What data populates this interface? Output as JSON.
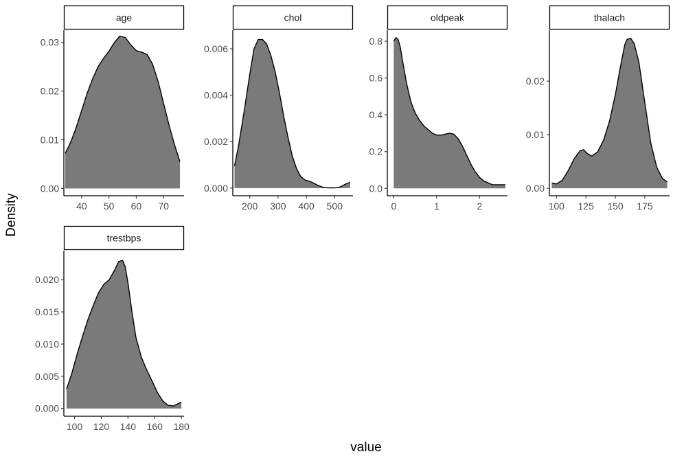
{
  "chart_data": {
    "type": "area",
    "title": "",
    "xlabel": "value",
    "ylabel": "Density",
    "colors": {
      "fill": "#7a7a7a",
      "line": "#000000",
      "strip_fill": "#ffffff",
      "strip_border": "#000000"
    },
    "grid": false,
    "panels": [
      {
        "name": "age",
        "xlim": [
          33.5,
          77.5
        ],
        "ylim": [
          -0.0015,
          0.0325
        ],
        "xticks": [
          40,
          50,
          60,
          70
        ],
        "yticks": [
          0.0,
          0.01,
          0.02,
          0.03
        ],
        "ytick_labels": [
          "0.00",
          "0.01",
          "0.02",
          "0.03"
        ],
        "x": [
          34,
          36,
          38,
          40,
          42,
          44,
          46,
          48,
          50,
          52,
          54,
          56,
          58,
          60,
          62,
          64,
          66,
          68,
          70,
          72,
          74,
          76
        ],
        "y": [
          0.0072,
          0.0095,
          0.0125,
          0.016,
          0.0195,
          0.0225,
          0.025,
          0.0267,
          0.0282,
          0.03,
          0.0313,
          0.031,
          0.0295,
          0.0283,
          0.028,
          0.0275,
          0.0255,
          0.022,
          0.0175,
          0.013,
          0.009,
          0.0055
        ]
      },
      {
        "name": "chol",
        "xlim": [
          140,
          565
        ],
        "ylim": [
          -0.00033,
          0.0068
        ],
        "xticks": [
          200,
          300,
          400,
          500
        ],
        "yticks": [
          0.0,
          0.002,
          0.004,
          0.006
        ],
        "ytick_labels": [
          "0.000",
          "0.002",
          "0.004",
          "0.006"
        ],
        "x": [
          146,
          160,
          180,
          200,
          215,
          230,
          245,
          260,
          275,
          290,
          305,
          320,
          335,
          350,
          365,
          380,
          395,
          410,
          425,
          440,
          460,
          480,
          500,
          520,
          540,
          555
        ],
        "y": [
          0.00095,
          0.0018,
          0.0033,
          0.0049,
          0.006,
          0.0064,
          0.0064,
          0.0062,
          0.0057,
          0.005,
          0.0041,
          0.0031,
          0.0022,
          0.0014,
          0.00085,
          0.0005,
          0.00035,
          0.0003,
          0.00022,
          0.00012,
          3e-05,
          1e-05,
          1e-05,
          5e-05,
          0.00018,
          0.00025
        ]
      },
      {
        "name": "oldpeak",
        "xlim": [
          -0.15,
          2.65
        ],
        "ylim": [
          -0.04,
          0.86
        ],
        "xticks": [
          0,
          1,
          2
        ],
        "yticks": [
          0.0,
          0.2,
          0.4,
          0.6,
          0.8
        ],
        "ytick_labels": [
          "0.0",
          "0.2",
          "0.4",
          "0.6",
          "0.8"
        ],
        "x": [
          0.0,
          0.05,
          0.1,
          0.15,
          0.2,
          0.3,
          0.4,
          0.5,
          0.6,
          0.7,
          0.8,
          0.9,
          1.0,
          1.1,
          1.2,
          1.3,
          1.4,
          1.5,
          1.6,
          1.7,
          1.8,
          1.9,
          2.0,
          2.1,
          2.2,
          2.3,
          2.4,
          2.5,
          2.6
        ],
        "y": [
          0.8,
          0.82,
          0.81,
          0.77,
          0.7,
          0.57,
          0.47,
          0.41,
          0.37,
          0.34,
          0.32,
          0.3,
          0.29,
          0.29,
          0.295,
          0.3,
          0.295,
          0.27,
          0.23,
          0.18,
          0.13,
          0.09,
          0.06,
          0.04,
          0.03,
          0.02,
          0.02,
          0.02,
          0.02
        ]
      },
      {
        "name": "thalach",
        "xlim": [
          94,
          196
        ],
        "ylim": [
          -0.0014,
          0.0295
        ],
        "xticks": [
          100,
          125,
          150,
          175
        ],
        "yticks": [
          0.0,
          0.01,
          0.02
        ],
        "ytick_labels": [
          "0.00",
          "0.01",
          "0.02"
        ],
        "x": [
          96,
          100,
          105,
          110,
          115,
          120,
          123,
          126,
          130,
          135,
          140,
          145,
          150,
          155,
          158,
          160,
          163,
          166,
          170,
          175,
          180,
          185,
          190,
          194
        ],
        "y": [
          0.001,
          0.0008,
          0.0015,
          0.0033,
          0.0055,
          0.007,
          0.0072,
          0.0065,
          0.006,
          0.0068,
          0.009,
          0.0125,
          0.0175,
          0.0235,
          0.0268,
          0.0278,
          0.028,
          0.027,
          0.0235,
          0.016,
          0.0085,
          0.004,
          0.0018,
          0.0012
        ]
      },
      {
        "name": "trestbps",
        "xlim": [
          92,
          182
        ],
        "ylim": [
          -0.0012,
          0.0245
        ],
        "xticks": [
          100,
          120,
          140,
          160,
          180
        ],
        "yticks": [
          0.0,
          0.005,
          0.01,
          0.015,
          0.02
        ],
        "ytick_labels": [
          "0.000",
          "0.005",
          "0.010",
          "0.015",
          "0.020"
        ],
        "x": [
          94,
          98,
          102,
          106,
          110,
          114,
          118,
          122,
          126,
          130,
          133,
          136,
          138,
          140,
          143,
          146,
          150,
          154,
          158,
          162,
          166,
          170,
          174,
          178,
          180
        ],
        "y": [
          0.003,
          0.0055,
          0.0085,
          0.0112,
          0.0138,
          0.016,
          0.018,
          0.0193,
          0.02,
          0.0215,
          0.0228,
          0.023,
          0.022,
          0.0195,
          0.015,
          0.011,
          0.008,
          0.006,
          0.0043,
          0.0025,
          0.0012,
          0.0005,
          0.0004,
          0.0008,
          0.001
        ]
      }
    ]
  }
}
